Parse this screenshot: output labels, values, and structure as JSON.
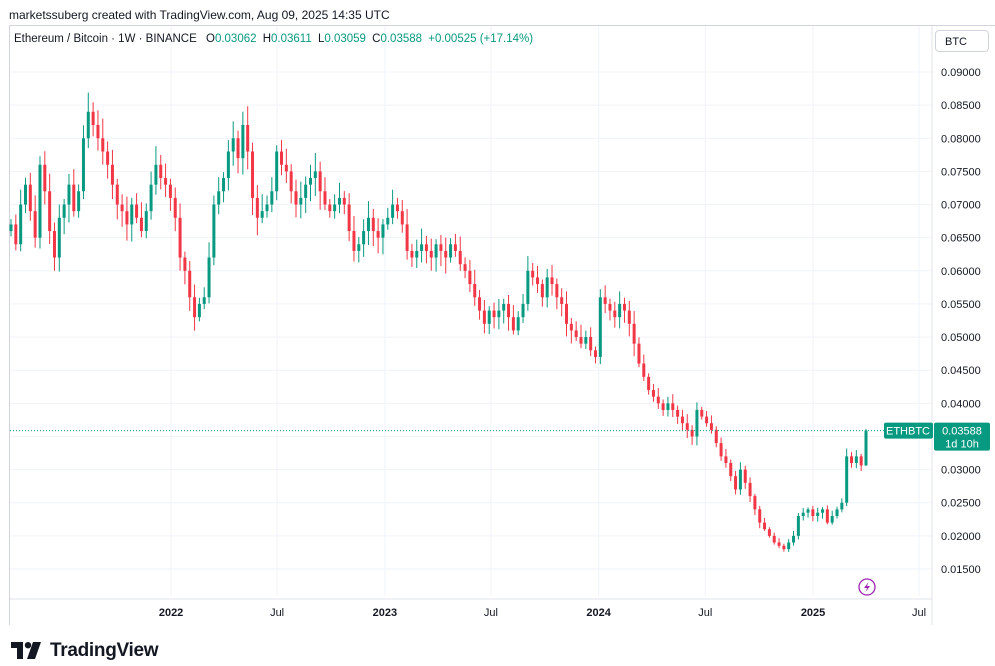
{
  "credit": "marketssuberg created with TradingView.com, Aug 09, 2025 14:35 UTC",
  "legend": {
    "symbol": "Ethereum / Bitcoin · 1W · BINANCE",
    "o_label": "O",
    "o": "0.03062",
    "h_label": "H",
    "h": "0.03611",
    "l_label": "L",
    "l": "0.03059",
    "c_label": "C",
    "c": "0.03588",
    "change": "+0.00525 (+17.14%)"
  },
  "currency_badge": "BTC",
  "price_label": {
    "symbol": "ETHBTC",
    "price": "0.03588",
    "countdown": "1d 10h"
  },
  "brand": "TradingView",
  "colors": {
    "up": "#089981",
    "down": "#f23645",
    "grid": "#f0f3fa",
    "alert_icon": "#9c27b0"
  },
  "icons": [
    "tradingview-logo-icon",
    "lightning-alert-icon"
  ],
  "chart_data": {
    "type": "candlestick",
    "symbol": "ETHBTC",
    "interval": "1W",
    "exchange": "BINANCE",
    "ylim": [
      0.0125,
      0.0925
    ],
    "y_ticks": [
      "0.09000",
      "0.08500",
      "0.08000",
      "0.07500",
      "0.07000",
      "0.06500",
      "0.06000",
      "0.05500",
      "0.05000",
      "0.04500",
      "0.04000",
      "0.03500",
      "0.03000",
      "0.02500",
      "0.02000",
      "0.01500"
    ],
    "x_ticks": [
      {
        "label": "2022",
        "date": "2022-01-01",
        "bold": true
      },
      {
        "label": "Jul",
        "date": "2022-07-01",
        "bold": false
      },
      {
        "label": "2023",
        "date": "2023-01-01",
        "bold": true
      },
      {
        "label": "Jul",
        "date": "2023-07-01",
        "bold": false
      },
      {
        "label": "2024",
        "date": "2024-01-01",
        "bold": true
      },
      {
        "label": "Jul",
        "date": "2024-07-01",
        "bold": false
      },
      {
        "label": "2025",
        "date": "2025-01-01",
        "bold": true
      },
      {
        "label": "Jul",
        "date": "2025-07-01",
        "bold": false
      }
    ],
    "last_price": 0.03588,
    "close": [
      0.067,
      0.064,
      0.07,
      0.073,
      0.069,
      0.065,
      0.076,
      0.072,
      0.066,
      0.062,
      0.068,
      0.07,
      0.073,
      0.069,
      0.072,
      0.08,
      0.084,
      0.082,
      0.08,
      0.078,
      0.076,
      0.073,
      0.07,
      0.069,
      0.067,
      0.07,
      0.068,
      0.066,
      0.069,
      0.073,
      0.076,
      0.074,
      0.073,
      0.071,
      0.068,
      0.062,
      0.06,
      0.056,
      0.053,
      0.055,
      0.056,
      0.062,
      0.07,
      0.072,
      0.074,
      0.078,
      0.08,
      0.077,
      0.082,
      0.078,
      0.071,
      0.068,
      0.069,
      0.07,
      0.072,
      0.078,
      0.076,
      0.075,
      0.072,
      0.07,
      0.071,
      0.073,
      0.074,
      0.075,
      0.072,
      0.07,
      0.069,
      0.07,
      0.071,
      0.07,
      0.066,
      0.063,
      0.064,
      0.066,
      0.068,
      0.066,
      0.065,
      0.067,
      0.068,
      0.07,
      0.069,
      0.067,
      0.063,
      0.062,
      0.063,
      0.064,
      0.063,
      0.062,
      0.064,
      0.063,
      0.062,
      0.064,
      0.063,
      0.061,
      0.06,
      0.058,
      0.056,
      0.054,
      0.052,
      0.054,
      0.053,
      0.054,
      0.055,
      0.053,
      0.051,
      0.053,
      0.055,
      0.06,
      0.059,
      0.058,
      0.056,
      0.059,
      0.058,
      0.056,
      0.055,
      0.052,
      0.051,
      0.05,
      0.049,
      0.05,
      0.048,
      0.047,
      0.056,
      0.055,
      0.054,
      0.053,
      0.055,
      0.054,
      0.052,
      0.049,
      0.046,
      0.044,
      0.042,
      0.041,
      0.04,
      0.039,
      0.04,
      0.039,
      0.038,
      0.037,
      0.036,
      0.035,
      0.039,
      0.038,
      0.037,
      0.036,
      0.034,
      0.032,
      0.031,
      0.029,
      0.027,
      0.03,
      0.028,
      0.026,
      0.024,
      0.022,
      0.021,
      0.02,
      0.019,
      0.0185,
      0.018,
      0.019,
      0.02,
      0.023,
      0.0235,
      0.024,
      0.023,
      0.0235,
      0.024,
      0.022,
      0.023,
      0.024,
      0.025,
      0.032,
      0.031,
      0.032,
      0.03062,
      0.03588
    ]
  }
}
